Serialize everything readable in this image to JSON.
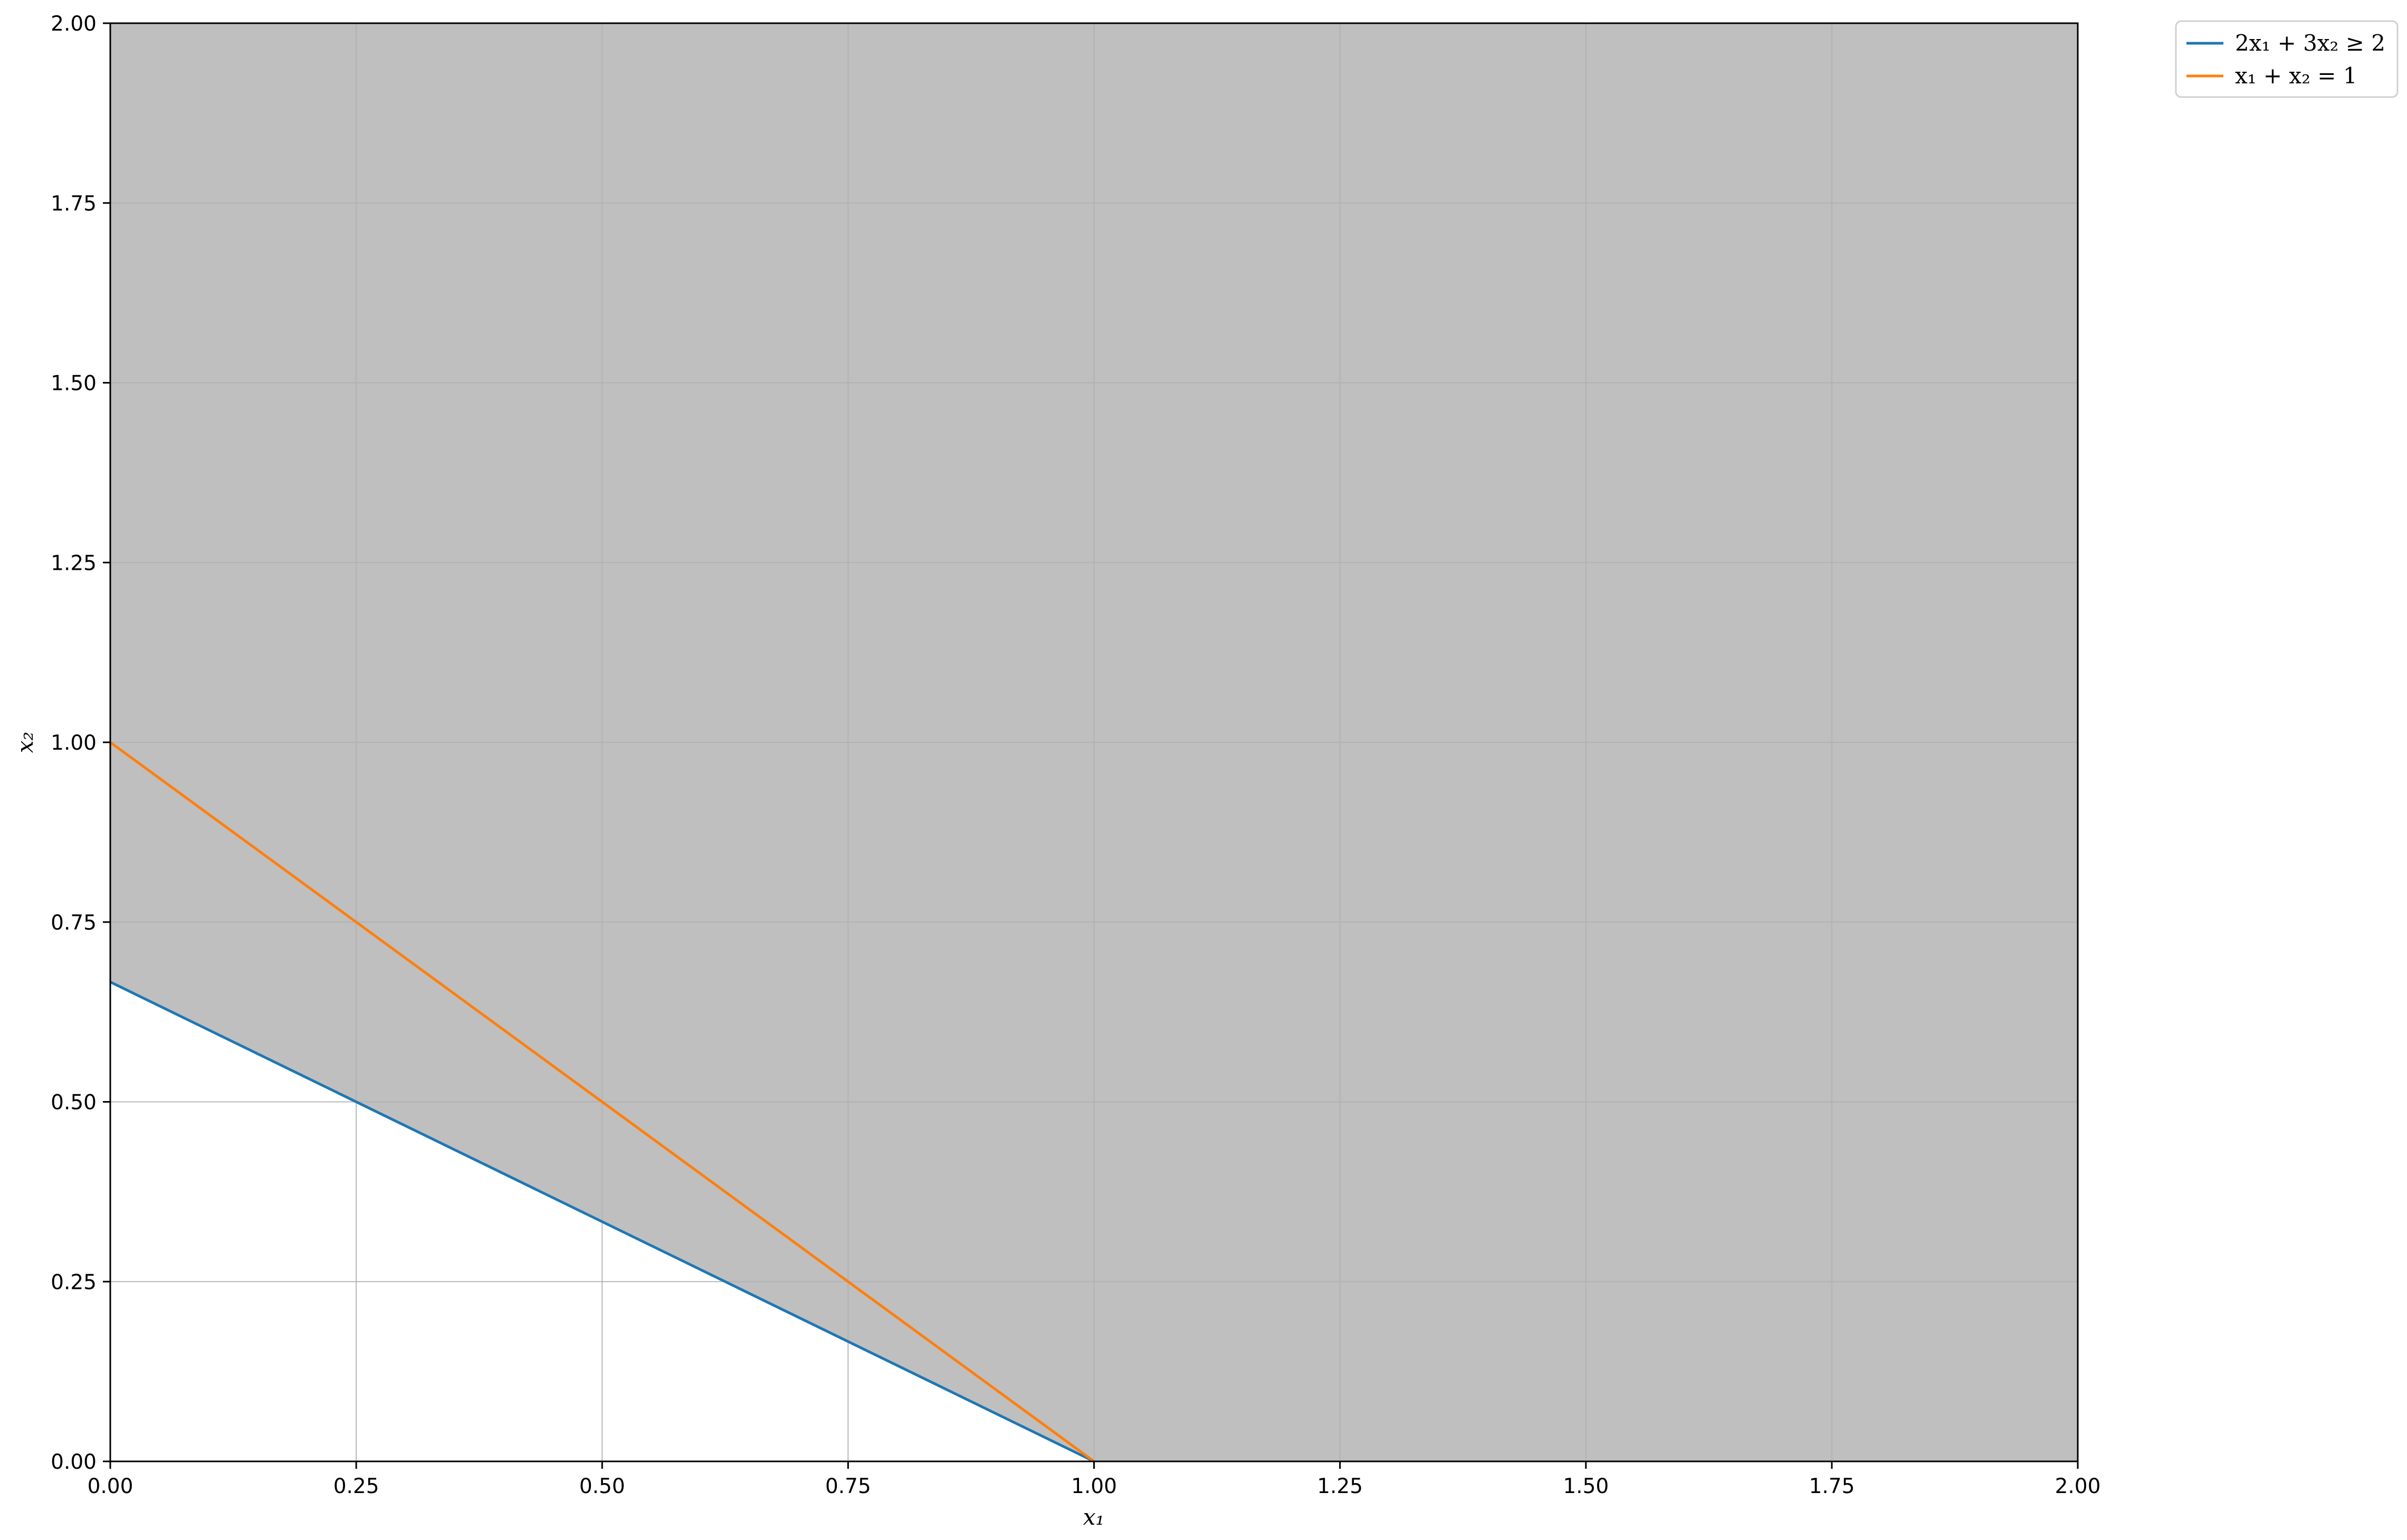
{
  "chart_data": {
    "type": "line",
    "title": "",
    "xlabel": "x₁",
    "ylabel": "x₂",
    "xlim": [
      0,
      2
    ],
    "ylim": [
      0,
      2
    ],
    "grid": true,
    "legend_placement": "outside-top-right",
    "x_ticks": [
      "0.00",
      "0.25",
      "0.50",
      "0.75",
      "1.00",
      "1.25",
      "1.50",
      "1.75",
      "2.00"
    ],
    "y_ticks": [
      "0.00",
      "0.25",
      "0.50",
      "0.75",
      "1.00",
      "1.25",
      "1.50",
      "1.75",
      "2.00"
    ],
    "series": [
      {
        "name": "2x₁ + 3x₂ ≥ 2",
        "color": "#1f77b4",
        "x": [
          0,
          1
        ],
        "y": [
          0.6667,
          0
        ]
      },
      {
        "name": "x₁ + x₂ = 1",
        "color": "#ff7f0e",
        "x": [
          0,
          1
        ],
        "y": [
          1,
          0
        ]
      }
    ],
    "feasible_region": {
      "description_color": "#bfbfbf",
      "boundary": "2x1 + 3x2 >= 2",
      "boundary_points": [
        [
          0,
          0.6667
        ],
        [
          1,
          0
        ]
      ]
    }
  }
}
